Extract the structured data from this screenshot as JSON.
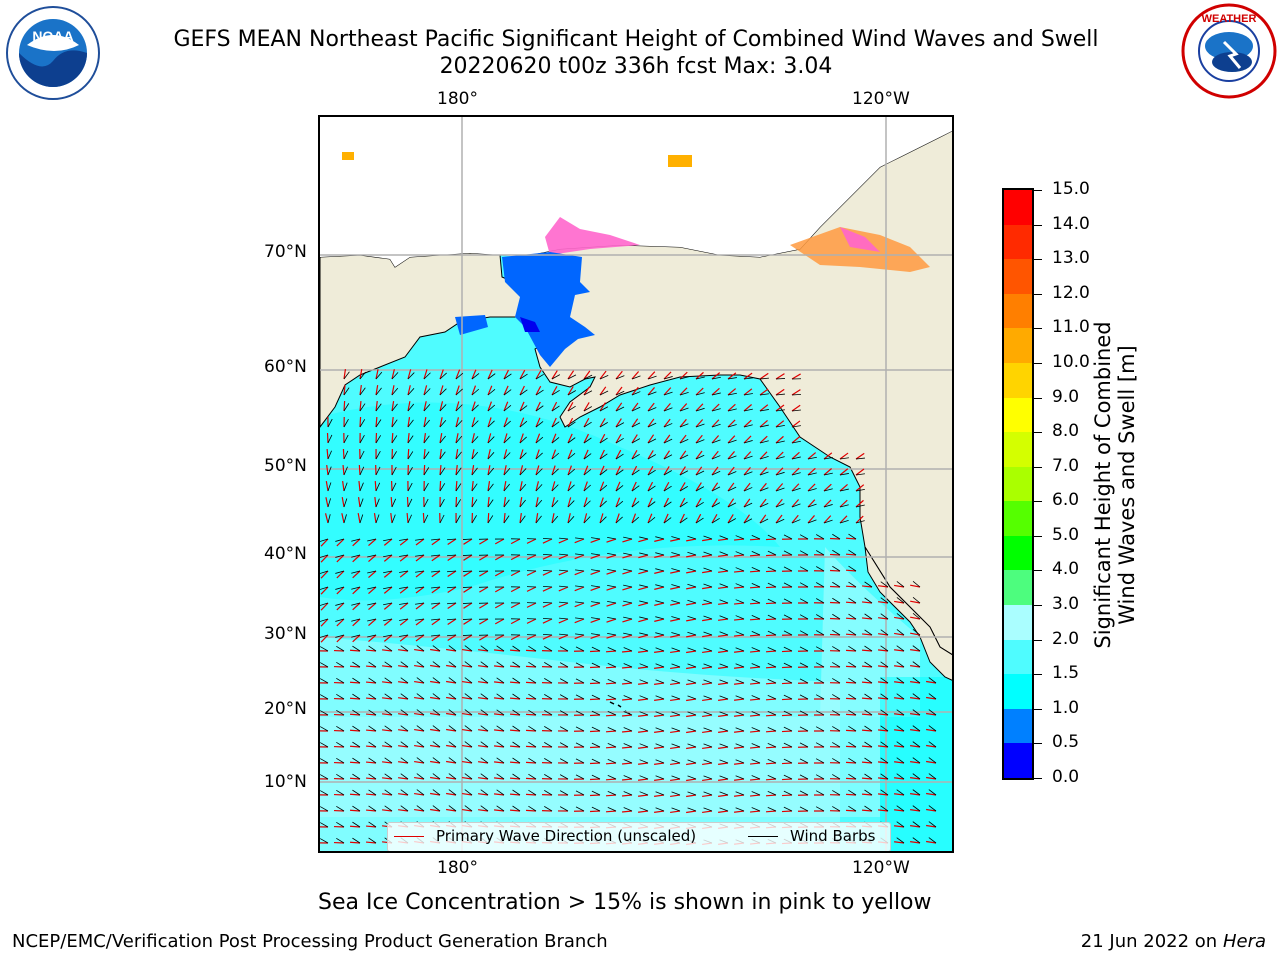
{
  "header": {
    "title_line1": "GEFS MEAN Northeast Pacific Significant Height of Combined Wind Waves and Swell",
    "title_line2": "20220620 t00z 336h fcst   Max: 3.04"
  },
  "logos": {
    "left": {
      "text": "NOAA",
      "ring_text": "NATIONAL OCEANIC AND ATMOSPHERIC ADMINISTRATION · U.S. DEPARTMENT OF COMMERCE"
    },
    "right": {
      "ring_text": "NATIONAL WEATHER SERVICE"
    }
  },
  "map": {
    "lon_labels_top": [
      "180°",
      "120°W"
    ],
    "lon_labels_bottom": [
      "180°",
      "120°W"
    ],
    "lat_labels": [
      "70°N",
      "60°N",
      "50°N",
      "40°N",
      "30°N",
      "20°N",
      "10°N"
    ],
    "colors": {
      "ocean_base": "#4ffcff",
      "land": "#efecd9",
      "grid": "#b0b0b0",
      "arrow": "#e00000",
      "barb": "#000000"
    }
  },
  "legend": {
    "primary_wave_direction": "Primary Wave Direction (unscaled)",
    "wind_barbs": "Wind Barbs"
  },
  "colorbar": {
    "title_line1": "Significant Height of Combined",
    "title_line2": "Wind Waves and Swell [m]",
    "ticks": [
      "15.0",
      "14.0",
      "13.0",
      "12.0",
      "11.0",
      "10.0",
      "9.0",
      "8.0",
      "7.0",
      "6.0",
      "5.0",
      "4.0",
      "3.0",
      "2.0",
      "1.5",
      "1.0",
      "0.5",
      "0.0"
    ],
    "colors_top_to_bottom": [
      "#ff0000",
      "#ff2a00",
      "#ff5500",
      "#ff7f00",
      "#ffaa00",
      "#ffd400",
      "#ffff00",
      "#d4ff00",
      "#aaff00",
      "#55ff00",
      "#00ff00",
      "#4dfd7e",
      "#aafeff",
      "#4ffcff",
      "#00ffff",
      "#0080ff",
      "#0000ff"
    ]
  },
  "footer": {
    "ice_note": "Sea Ice Concentration > 15% is shown in pink to yellow",
    "branch": "NCEP/EMC/Verification Post Processing Product Generation Branch",
    "date": "21 Jun 2022 on",
    "machine": "Hera"
  }
}
